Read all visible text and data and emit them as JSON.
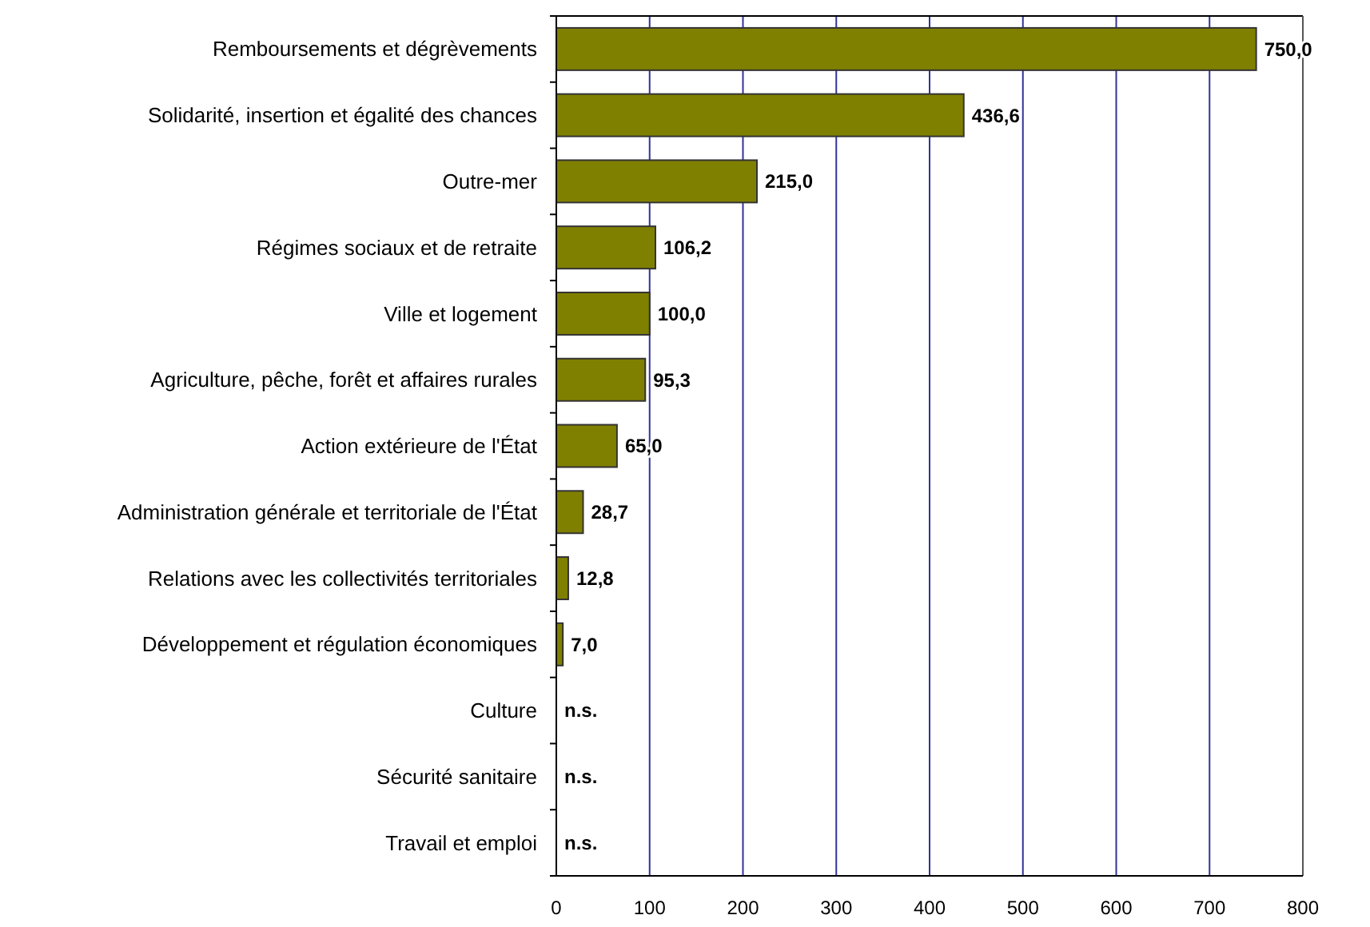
{
  "chart_data": {
    "type": "bar",
    "orientation": "horizontal",
    "categories": [
      "Remboursements et dégrèvements",
      "Solidarité, insertion et égalité des chances",
      "Outre-mer",
      "Régimes sociaux et de retraite",
      "Ville et logement",
      "Agriculture, pêche, forêt et affaires rurales",
      "Action extérieure de l'État",
      "Administration générale et territoriale de l'État",
      "Relations avec les collectivités territoriales",
      "Développement et régulation économiques",
      "Culture",
      "Sécurité sanitaire",
      "Travail et emploi"
    ],
    "values": [
      750.0,
      436.6,
      215.0,
      106.2,
      100.0,
      95.3,
      65.0,
      28.7,
      12.8,
      7.0,
      null,
      null,
      null
    ],
    "value_labels": [
      "750,0",
      "436,6",
      "215,0",
      "106,2",
      "100,0",
      "95,3",
      "65,0",
      "28,7",
      "12,8",
      "7,0",
      "n.s.",
      "n.s.",
      "n.s."
    ],
    "color": "#808000",
    "xlim": [
      0,
      800
    ],
    "xticks": [
      0,
      100,
      200,
      300,
      400,
      500,
      600,
      700,
      800
    ],
    "grid": "x"
  }
}
